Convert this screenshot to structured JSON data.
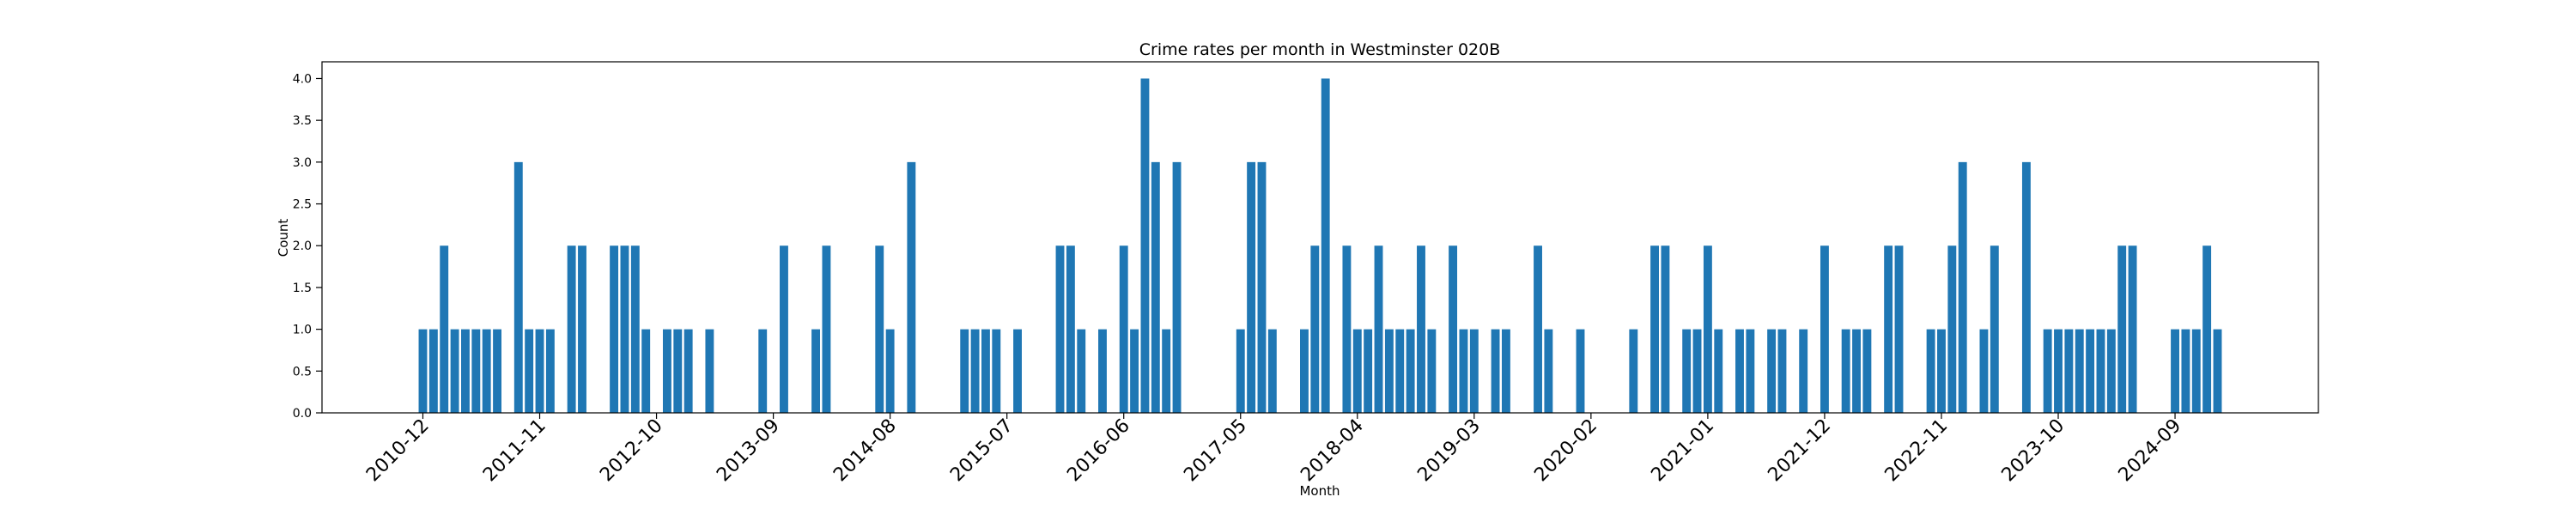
{
  "chart_data": {
    "type": "bar",
    "title": "Crime rates per month in Westminster 020B",
    "xlabel": "Month",
    "ylabel": "Count",
    "ylim": [
      0,
      4.2
    ],
    "yticks": [
      0,
      0.5,
      1,
      1.5,
      2,
      2.5,
      3,
      3.5,
      4
    ],
    "ytick_labels": [
      "0.0",
      "0.5",
      "1.0",
      "1.5",
      "2.0",
      "2.5",
      "3.0",
      "3.5",
      "4.0"
    ],
    "xticks": [
      {
        "label": "2010-12",
        "pos": 0
      },
      {
        "label": "2011-11",
        "pos": 11
      },
      {
        "label": "2012-10",
        "pos": 22
      },
      {
        "label": "2013-09",
        "pos": 33
      },
      {
        "label": "2014-08",
        "pos": 44
      },
      {
        "label": "2015-07",
        "pos": 55
      },
      {
        "label": "2016-06",
        "pos": 66
      },
      {
        "label": "2017-05",
        "pos": 77
      },
      {
        "label": "2018-04",
        "pos": 88
      },
      {
        "label": "2019-03",
        "pos": 99
      },
      {
        "label": "2020-02",
        "pos": 110
      },
      {
        "label": "2021-01",
        "pos": 121
      },
      {
        "label": "2021-12",
        "pos": 132
      },
      {
        "label": "2022-11",
        "pos": 143
      },
      {
        "label": "2023-10",
        "pos": 154
      },
      {
        "label": "2024-09",
        "pos": 165
      }
    ],
    "xlim": [
      -9.5,
      178.5
    ],
    "grid": false,
    "bars": [
      {
        "x": 0,
        "value": 1
      },
      {
        "x": 1,
        "value": 1
      },
      {
        "x": 2,
        "value": 2
      },
      {
        "x": 3,
        "value": 1
      },
      {
        "x": 4,
        "value": 1
      },
      {
        "x": 5,
        "value": 1
      },
      {
        "x": 6,
        "value": 1
      },
      {
        "x": 7,
        "value": 1
      },
      {
        "x": 9,
        "value": 3
      },
      {
        "x": 10,
        "value": 1
      },
      {
        "x": 11,
        "value": 1
      },
      {
        "x": 12,
        "value": 1
      },
      {
        "x": 14,
        "value": 2
      },
      {
        "x": 15,
        "value": 2
      },
      {
        "x": 18,
        "value": 2
      },
      {
        "x": 19,
        "value": 2
      },
      {
        "x": 20,
        "value": 2
      },
      {
        "x": 21,
        "value": 1
      },
      {
        "x": 23,
        "value": 1
      },
      {
        "x": 24,
        "value": 1
      },
      {
        "x": 25,
        "value": 1
      },
      {
        "x": 27,
        "value": 1
      },
      {
        "x": 32,
        "value": 1
      },
      {
        "x": 34,
        "value": 2
      },
      {
        "x": 37,
        "value": 1
      },
      {
        "x": 38,
        "value": 2
      },
      {
        "x": 43,
        "value": 2
      },
      {
        "x": 44,
        "value": 1
      },
      {
        "x": 46,
        "value": 3
      },
      {
        "x": 51,
        "value": 1
      },
      {
        "x": 52,
        "value": 1
      },
      {
        "x": 53,
        "value": 1
      },
      {
        "x": 54,
        "value": 1
      },
      {
        "x": 56,
        "value": 1
      },
      {
        "x": 60,
        "value": 2
      },
      {
        "x": 61,
        "value": 2
      },
      {
        "x": 62,
        "value": 1
      },
      {
        "x": 64,
        "value": 1
      },
      {
        "x": 66,
        "value": 2
      },
      {
        "x": 67,
        "value": 1
      },
      {
        "x": 68,
        "value": 4
      },
      {
        "x": 69,
        "value": 3
      },
      {
        "x": 70,
        "value": 1
      },
      {
        "x": 71,
        "value": 3
      },
      {
        "x": 77,
        "value": 1
      },
      {
        "x": 78,
        "value": 3
      },
      {
        "x": 79,
        "value": 3
      },
      {
        "x": 80,
        "value": 1
      },
      {
        "x": 83,
        "value": 1
      },
      {
        "x": 84,
        "value": 2
      },
      {
        "x": 85,
        "value": 4
      },
      {
        "x": 87,
        "value": 2
      },
      {
        "x": 88,
        "value": 1
      },
      {
        "x": 89,
        "value": 1
      },
      {
        "x": 90,
        "value": 2
      },
      {
        "x": 91,
        "value": 1
      },
      {
        "x": 92,
        "value": 1
      },
      {
        "x": 93,
        "value": 1
      },
      {
        "x": 94,
        "value": 2
      },
      {
        "x": 95,
        "value": 1
      },
      {
        "x": 97,
        "value": 2
      },
      {
        "x": 98,
        "value": 1
      },
      {
        "x": 99,
        "value": 1
      },
      {
        "x": 101,
        "value": 1
      },
      {
        "x": 102,
        "value": 1
      },
      {
        "x": 105,
        "value": 2
      },
      {
        "x": 106,
        "value": 1
      },
      {
        "x": 109,
        "value": 1
      },
      {
        "x": 114,
        "value": 1
      },
      {
        "x": 116,
        "value": 2
      },
      {
        "x": 117,
        "value": 2
      },
      {
        "x": 119,
        "value": 1
      },
      {
        "x": 120,
        "value": 1
      },
      {
        "x": 121,
        "value": 2
      },
      {
        "x": 122,
        "value": 1
      },
      {
        "x": 124,
        "value": 1
      },
      {
        "x": 125,
        "value": 1
      },
      {
        "x": 127,
        "value": 1
      },
      {
        "x": 128,
        "value": 1
      },
      {
        "x": 130,
        "value": 1
      },
      {
        "x": 132,
        "value": 2
      },
      {
        "x": 134,
        "value": 1
      },
      {
        "x": 135,
        "value": 1
      },
      {
        "x": 136,
        "value": 1
      },
      {
        "x": 138,
        "value": 2
      },
      {
        "x": 139,
        "value": 2
      },
      {
        "x": 142,
        "value": 1
      },
      {
        "x": 143,
        "value": 1
      },
      {
        "x": 144,
        "value": 2
      },
      {
        "x": 145,
        "value": 3
      },
      {
        "x": 147,
        "value": 1
      },
      {
        "x": 148,
        "value": 2
      },
      {
        "x": 151,
        "value": 3
      },
      {
        "x": 153,
        "value": 1
      },
      {
        "x": 154,
        "value": 1
      },
      {
        "x": 155,
        "value": 1
      },
      {
        "x": 156,
        "value": 1
      },
      {
        "x": 157,
        "value": 1
      },
      {
        "x": 158,
        "value": 1
      },
      {
        "x": 159,
        "value": 1
      },
      {
        "x": 160,
        "value": 2
      },
      {
        "x": 161,
        "value": 2
      },
      {
        "x": 165,
        "value": 1
      },
      {
        "x": 166,
        "value": 1
      },
      {
        "x": 167,
        "value": 1
      },
      {
        "x": 168,
        "value": 2
      },
      {
        "x": 169,
        "value": 1
      }
    ],
    "colors": {
      "bar": "#1f77b4"
    }
  }
}
